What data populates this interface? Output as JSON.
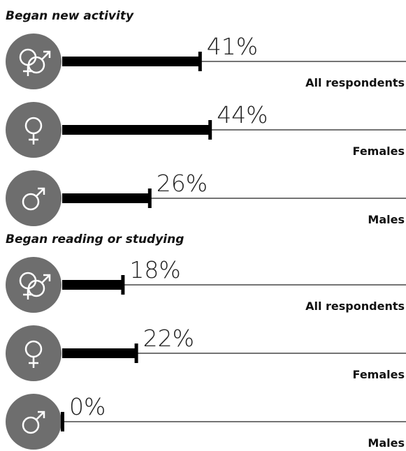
{
  "chart_data": [
    {
      "type": "bar",
      "title": "Began new activity",
      "categories": [
        "All respondents",
        "Females",
        "Males"
      ],
      "values": [
        41,
        44,
        26
      ],
      "value_labels": [
        "41%",
        "44%",
        "26%"
      ],
      "color": "#000000"
    },
    {
      "type": "bar",
      "title": "Began reading or studying",
      "categories": [
        "All respondents",
        "Females",
        "Males"
      ],
      "values": [
        18,
        22,
        0
      ],
      "value_labels": [
        "18%",
        "22%",
        "0%"
      ],
      "color": "#000000"
    }
  ]
}
